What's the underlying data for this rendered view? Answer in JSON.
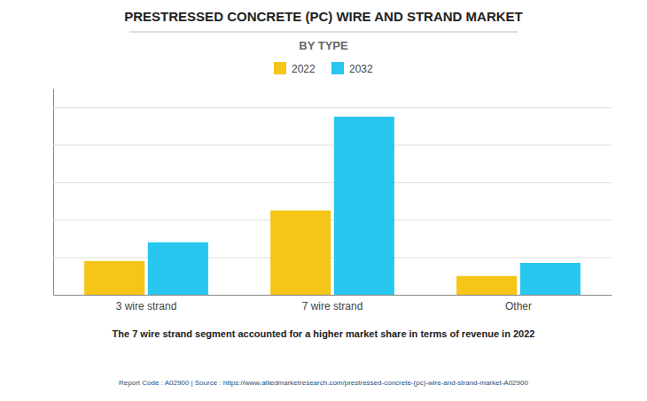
{
  "chart_data": {
    "type": "bar",
    "title": "PRESTRESSED CONCRETE (PC) WIRE AND STRAND MARKET",
    "subtitle": "BY TYPE",
    "categories": [
      "3 wire strand",
      "7 wire strand",
      "Other"
    ],
    "series": [
      {
        "name": "2022",
        "color": "#F5C518",
        "values": [
          1.8,
          4.5,
          1.0
        ]
      },
      {
        "name": "2032",
        "color": "#29C6F0",
        "values": [
          2.8,
          9.5,
          1.7
        ]
      }
    ],
    "ylim": [
      0,
      11
    ],
    "yticks": [
      0,
      2,
      4,
      6,
      8,
      10
    ],
    "grid": true,
    "legend": "top",
    "tick_labels": "x",
    "annotations": [
      "The 7 wire strand segment accounted for a higher market share in terms of revenue in 2022",
      "Report Code : A02900  |  Source : https://www.alliedmarketresearch.com/prestressed-concrete-(pc)-wire-and-strand-market-A02900"
    ]
  }
}
